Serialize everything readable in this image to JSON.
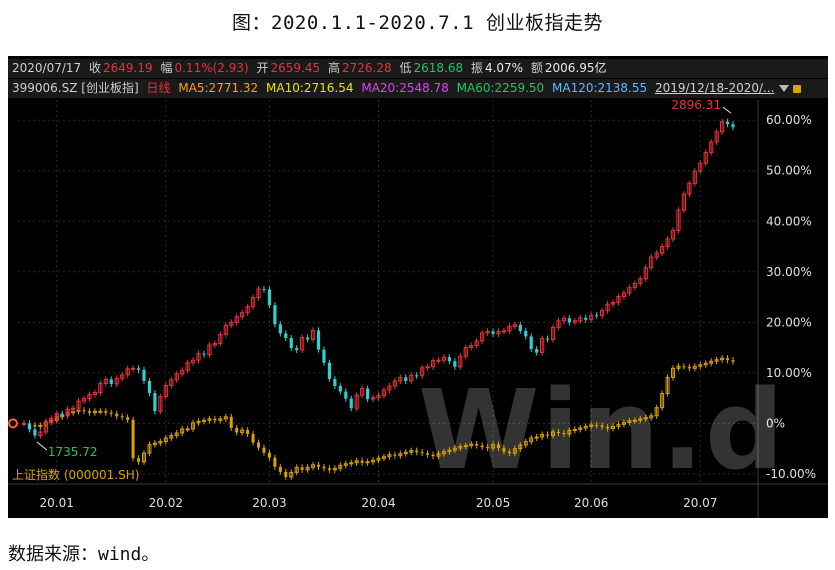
{
  "title": "图：2020.1.1-2020.7.1 创业板指走势",
  "source": "数据来源：wind。",
  "quote_bar": {
    "date": "2020/07/17",
    "close_label": "收",
    "close": "2649.19",
    "change_label": "幅",
    "change": "0.11%(2.93)",
    "open_label": "开",
    "open": "2659.45",
    "high_label": "高",
    "high": "2726.28",
    "low_label": "低",
    "low": "2618.68",
    "amp_label": "振",
    "amp": "4.07%",
    "amount_label": "额",
    "amount": "2006.95亿"
  },
  "ma_bar": {
    "code": "399006.SZ [创业板指]",
    "period": "日线",
    "ma5": "MA5:2771.32",
    "ma10": "MA10:2716.54",
    "ma20": "MA20:2548.78",
    "ma60": "MA60:2259.50",
    "ma120": "MA120:2138.55",
    "range": "2019/12/18-2020/..."
  },
  "colors": {
    "up": "#e8323c",
    "down": "#2fd0d0",
    "compare": "#d9a300",
    "ma5": "#ff9f1a",
    "ma10": "#e6e600",
    "ma20": "#e040fb",
    "ma60": "#22c55e",
    "ma120": "#60b8ff"
  },
  "chart_data": {
    "type": "candlestick",
    "y_unit": "%",
    "ylim": [
      -12,
      64
    ],
    "yticks": [
      "60.00%",
      "50.00%",
      "40.00%",
      "30.00%",
      "20.00%",
      "10.00%",
      "0%",
      "-10.00%"
    ],
    "ytick_values": [
      60,
      50,
      40,
      30,
      20,
      10,
      0,
      -10
    ],
    "xticks": [
      "20.01",
      "20.02",
      "20.03",
      "20.04",
      "20.05",
      "20.06",
      "20.07"
    ],
    "xtick_index": [
      6,
      26,
      45,
      65,
      86,
      104,
      124
    ],
    "grid": true,
    "annotations": {
      "max_label": "2896.31",
      "max_index": 130,
      "max_value": 61.0,
      "min_label": "1735.72",
      "min_index": 2,
      "min_value": -3.3
    },
    "compare_label": "上证指数 (000001.SH)",
    "watermark": "Win.d",
    "main_series": {
      "name": "399006.SZ [创业板指]",
      "closes": [
        0.0,
        -1.2,
        -2.4,
        -1.7,
        0.2,
        1.0,
        1.9,
        1.5,
        2.8,
        3.0,
        4.4,
        4.9,
        5.7,
        6.1,
        7.9,
        8.7,
        7.8,
        8.9,
        9.6,
        10.8,
        10.9,
        10.6,
        8.4,
        6.0,
        2.4,
        5.3,
        7.5,
        8.6,
        9.8,
        10.5,
        12.0,
        12.5,
        13.8,
        13.6,
        15.5,
        15.8,
        17.6,
        19.4,
        20.0,
        21.1,
        21.9,
        23.1,
        24.9,
        26.6,
        26.5,
        23.4,
        19.6,
        17.8,
        16.9,
        14.9,
        14.5,
        17.0,
        16.6,
        18.4,
        14.6,
        12.0,
        8.8,
        7.4,
        6.3,
        4.9,
        3.0,
        5.6,
        6.9,
        4.8,
        5.1,
        5.5,
        6.6,
        7.4,
        8.4,
        9.1,
        8.4,
        9.5,
        9.4,
        11.0,
        11.2,
        12.4,
        12.5,
        13.1,
        12.3,
        11.2,
        13.3,
        15.0,
        15.4,
        16.3,
        17.9,
        18.2,
        17.7,
        18.2,
        18.3,
        19.2,
        19.5,
        18.3,
        17.2,
        14.7,
        14.0,
        16.8,
        16.6,
        19.0,
        20.3,
        20.8,
        20.0,
        20.3,
        20.9,
        20.5,
        21.4,
        21.3,
        22.3,
        23.6,
        23.9,
        25.1,
        25.8,
        26.9,
        27.7,
        28.6,
        30.8,
        32.9,
        33.7,
        35.0,
        36.5,
        38.2,
        42.2,
        45.4,
        47.5,
        49.9,
        51.5,
        53.6,
        55.7,
        57.7,
        59.7,
        59.2,
        58.6
      ]
    },
    "compare_series": {
      "name": "上证指数 (000001.SH)",
      "closes": [
        0.0,
        -0.3,
        -0.6,
        -0.4,
        0.3,
        0.6,
        1.3,
        1.6,
        2.1,
        2.4,
        2.6,
        2.4,
        2.1,
        2.4,
        2.4,
        2.1,
        1.9,
        1.4,
        1.2,
        0.7,
        -6.9,
        -7.6,
        -5.9,
        -4.2,
        -3.9,
        -3.6,
        -2.9,
        -2.4,
        -1.9,
        -1.1,
        -1.1,
        0.1,
        0.4,
        0.6,
        0.9,
        0.6,
        0.9,
        1.3,
        -0.9,
        -1.8,
        -1.3,
        -2.1,
        -3.8,
        -4.8,
        -5.8,
        -6.8,
        -8.6,
        -9.6,
        -10.6,
        -9.7,
        -8.7,
        -9.2,
        -8.7,
        -8.2,
        -8.6,
        -8.9,
        -9.2,
        -8.9,
        -8.3,
        -8.0,
        -7.8,
        -7.4,
        -7.8,
        -7.6,
        -7.3,
        -6.9,
        -6.6,
        -6.2,
        -6.4,
        -6.0,
        -5.7,
        -5.4,
        -5.7,
        -5.9,
        -6.2,
        -6.5,
        -6.0,
        -5.6,
        -5.3,
        -4.9,
        -4.6,
        -4.4,
        -4.1,
        -4.4,
        -4.7,
        -4.9,
        -4.2,
        -4.9,
        -5.6,
        -5.9,
        -5.0,
        -4.3,
        -3.6,
        -2.9,
        -2.7,
        -2.2,
        -2.4,
        -1.7,
        -1.9,
        -2.1,
        -1.4,
        -1.2,
        -0.9,
        -0.6,
        -0.3,
        -0.4,
        -0.7,
        -1.0,
        -0.6,
        -0.2,
        0.2,
        0.5,
        0.6,
        0.9,
        1.1,
        1.5,
        3.1,
        5.9,
        9.1,
        10.9,
        11.3,
        11.2,
        10.9,
        11.3,
        11.6,
        11.9,
        12.3,
        12.6,
        12.9,
        12.5,
        12.2
      ]
    }
  }
}
